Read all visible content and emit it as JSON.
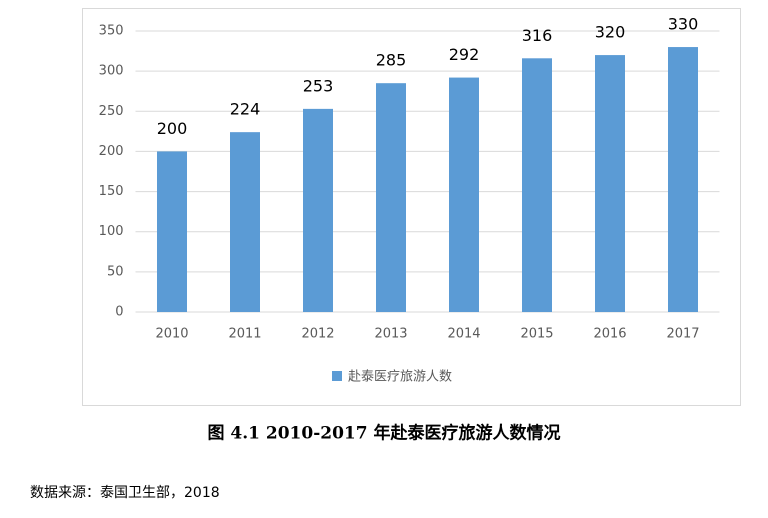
{
  "chart_data": {
    "type": "bar",
    "categories": [
      "2010",
      "2011",
      "2012",
      "2013",
      "2014",
      "2015",
      "2016",
      "2017"
    ],
    "series": [
      {
        "name": "赴泰医疗旅游人数",
        "color": "#5b9bd5",
        "values": [
          200,
          224,
          253,
          285,
          292,
          316,
          320,
          330
        ]
      }
    ],
    "ylim": [
      0,
      350
    ],
    "yticks": [
      0,
      50,
      100,
      150,
      200,
      250,
      300,
      350
    ],
    "grid": true,
    "legend": "bottom"
  },
  "caption": "图 4.1 2010-2017 年赴泰医疗旅游人数情况",
  "source": "数据来源：泰国卫生部，2018"
}
